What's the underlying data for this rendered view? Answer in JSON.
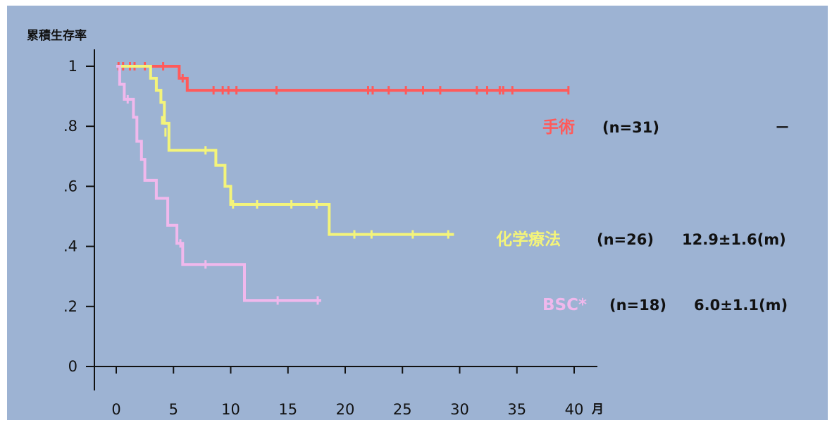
{
  "chart_data": {
    "type": "line",
    "subtype": "kaplan-meier step",
    "ylabel": "累積生存率",
    "xlabel": "月",
    "xlim": [
      0,
      40
    ],
    "ylim": [
      0,
      1
    ],
    "x_ticks": [
      0,
      5,
      10,
      15,
      20,
      25,
      30,
      35,
      40
    ],
    "y_ticks": [
      0,
      0.2,
      0.4,
      0.6,
      0.8,
      1
    ],
    "y_tick_labels": [
      "0",
      ".2",
      ".4",
      ".6",
      ".8",
      "1"
    ],
    "grid": false,
    "legend_placement": "right",
    "series": [
      {
        "name": "手術",
        "stat_text": "(n=31)",
        "median_text": "－",
        "color": "#ff5a5a",
        "x": [
          0,
          5.5,
          5.5,
          6.2,
          6.2,
          39.5
        ],
        "y": [
          1.0,
          1.0,
          0.96,
          0.96,
          0.92,
          0.92
        ],
        "censor_x": [
          0.2,
          0.6,
          1.2,
          1.6,
          2.5,
          4.1,
          5.8,
          8.5,
          9.3,
          9.8,
          10.5,
          14,
          22,
          22.4,
          23.8,
          25.3,
          26.8,
          28.3,
          31.5,
          32.4,
          33.5,
          33.8,
          34.6,
          39.5
        ],
        "censor_y": [
          1.0,
          1.0,
          1.0,
          1.0,
          1.0,
          1.0,
          0.96,
          0.92,
          0.92,
          0.92,
          0.92,
          0.92,
          0.92,
          0.92,
          0.92,
          0.92,
          0.92,
          0.92,
          0.92,
          0.92,
          0.92,
          0.92,
          0.92,
          0.92
        ]
      },
      {
        "name": "化学療法",
        "stat_text": "(n=26)",
        "median_text": "12.9±1.6(m)",
        "color": "#f4f47a",
        "x": [
          0,
          3,
          3,
          3.5,
          3.5,
          3.9,
          3.9,
          4.2,
          4.2,
          4.6,
          4.6,
          8.7,
          8.7,
          9.5,
          9.5,
          10,
          10,
          18.6,
          18.6,
          29.5
        ],
        "y": [
          1.0,
          1.0,
          0.96,
          0.96,
          0.92,
          0.92,
          0.88,
          0.88,
          0.81,
          0.81,
          0.72,
          0.72,
          0.67,
          0.67,
          0.6,
          0.6,
          0.54,
          0.54,
          0.44,
          0.44
        ],
        "censor_x": [
          4.0,
          4.3,
          7.8,
          10.2,
          12.3,
          15.3,
          17.5,
          20.8,
          22.3,
          25.9,
          29.0
        ],
        "censor_y": [
          0.82,
          0.78,
          0.72,
          0.54,
          0.54,
          0.54,
          0.54,
          0.44,
          0.44,
          0.44,
          0.44
        ]
      },
      {
        "name": "BSC*",
        "stat_text": "(n=18)",
        "median_text": "6.0±1.1(m)",
        "color": "#f0b8ec",
        "x": [
          0,
          0.3,
          0.3,
          0.7,
          0.7,
          1.5,
          1.5,
          1.8,
          1.8,
          2.2,
          2.2,
          2.5,
          2.5,
          3.5,
          3.5,
          4.5,
          4.5,
          5.3,
          5.3,
          5.8,
          5.8,
          11.2,
          11.2,
          17.9
        ],
        "y": [
          1.0,
          1.0,
          0.94,
          0.94,
          0.89,
          0.89,
          0.83,
          0.83,
          0.75,
          0.75,
          0.69,
          0.69,
          0.62,
          0.62,
          0.56,
          0.56,
          0.47,
          0.47,
          0.41,
          0.41,
          0.34,
          0.34,
          0.22,
          0.22
        ],
        "censor_x": [
          1.0,
          5.6,
          7.8,
          14.1,
          17.6
        ],
        "censor_y": [
          0.89,
          0.41,
          0.34,
          0.22,
          0.22
        ]
      }
    ]
  }
}
